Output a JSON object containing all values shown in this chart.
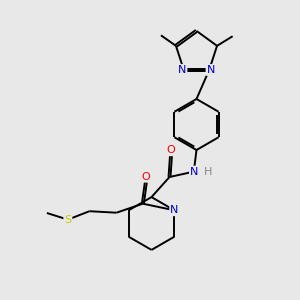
{
  "bg_color": "#e8e8e8",
  "bond_color": "#000000",
  "N_color": "#0000cc",
  "O_color": "#ff0000",
  "S_color": "#cccc00",
  "H_color": "#888888",
  "line_width": 1.4,
  "figsize": [
    3.0,
    3.0
  ],
  "dpi": 100,
  "xlim": [
    0,
    10
  ],
  "ylim": [
    0,
    10
  ]
}
